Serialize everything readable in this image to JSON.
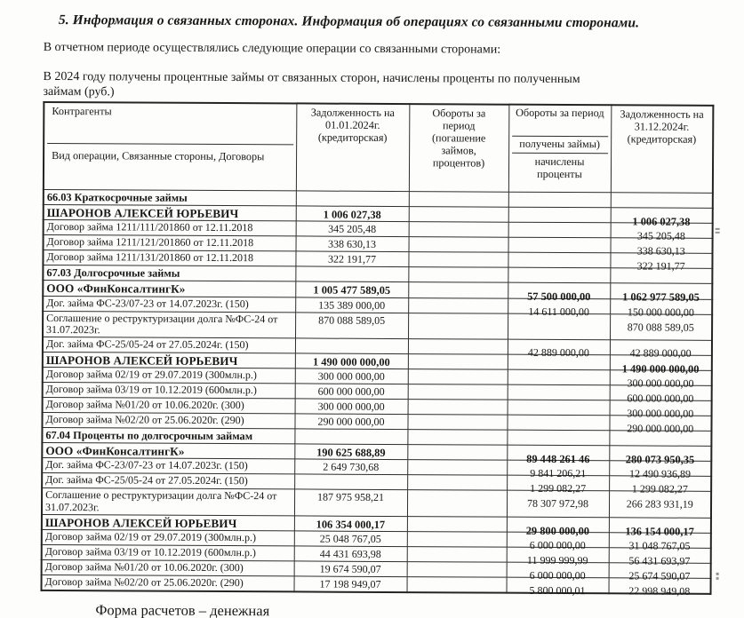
{
  "doc": {
    "title": "5. Информация о связанных сторонах. Информация об операциях со связанными сторонами.",
    "intro": "В отчетном периоде осуществлялись следующие операции со связанными сторонами:",
    "caption_line1": "В 2024 году получены процентные займы от связанных сторон, начислены проценты по полученным",
    "caption_line2": "займам (руб.)",
    "footer": "Форма расчетов – денежная"
  },
  "table": {
    "header": {
      "contractors": "Контрагенты",
      "operation_type": "Вид операции, Связанные стороны, Договоры",
      "debt_start": "Задолженность на 01.01.2024г. (кредиторская)",
      "turnover_repayment": "Обороты за период (погашение займов, процентов)",
      "turnover_period": "Обороты за период",
      "loans_received": "получены займы)",
      "interest_accrued": "начислены проценты",
      "debt_end": "Задолженность на 31.12.2024г. (кредиторская)"
    },
    "rows": [
      {
        "style": "section",
        "label": "66.03 Краткосрочные займы",
        "c2": "",
        "c3": "",
        "c4": "",
        "c5": ""
      },
      {
        "style": "group",
        "label": "ШАРОНОВ АЛЕКСЕЙ ЮРЬЕВИЧ",
        "c2": "1 006 027,38",
        "c3": "",
        "c4": "",
        "c5": "1 006 027,38"
      },
      {
        "style": "item",
        "label": "Договор займа 1211/111/201860 от 12.11.2018",
        "c2": "345 205,48",
        "c3": "",
        "c4": "",
        "c5": "345 205,48"
      },
      {
        "style": "item",
        "label": "Договор займа 1211/121/201860 от 12.11.2018",
        "c2": "338 630,13",
        "c3": "",
        "c4": "",
        "c5": "338 630,13"
      },
      {
        "style": "item",
        "label": "Договор займа 1211/131/201860 от 12.11.2018",
        "c2": "322 191,77",
        "c3": "",
        "c4": "",
        "c5": "322 191,77"
      },
      {
        "style": "section",
        "label": "67.03 Долгосрочные займы",
        "c2": "",
        "c3": "",
        "c4": "",
        "c5": ""
      },
      {
        "style": "group",
        "label": "ООО «ФинКонсалтингК»",
        "c2": "1 005 477 589,05",
        "c3": "",
        "c4": "57 500 000,00",
        "c5": "1 062 977 589,05"
      },
      {
        "style": "item",
        "label": "Дог. займа ФС-23/07-23 от 14.07.2023г. (150)",
        "c2": "135 389 000,00",
        "c3": "",
        "c4": "14 611 000,00",
        "c5": "150 000 000,00"
      },
      {
        "style": "item2",
        "label": "Соглашение о реструктуризации долга №ФС-24 от 31.07.2023г.",
        "c2": "870 088 589,05",
        "c3": "",
        "c4": "",
        "c5": "870 088 589,05"
      },
      {
        "style": "item",
        "label": "Дог. займа ФС-25/05-24 от 27.05.2024г. (150)",
        "c2": "",
        "c3": "",
        "c4": "42 889 000,00",
        "c5": "42 889 000,00"
      },
      {
        "style": "group",
        "label": "ШАРОНОВ АЛЕКСЕЙ ЮРЬЕВИЧ",
        "c2": "1 490 000 000,00",
        "c3": "",
        "c4": "",
        "c5": "1 490 000 000,00"
      },
      {
        "style": "item",
        "label": "Договор займа 02/19 от 29.07.2019 (300млн.р.)",
        "c2": "300 000 000,00",
        "c3": "",
        "c4": "",
        "c5": "300 000 000,00"
      },
      {
        "style": "item",
        "label": "Договор займа 03/19 от 10.12.2019 (600млн.р.)",
        "c2": "600 000 000,00",
        "c3": "",
        "c4": "",
        "c5": "600 000 000,00"
      },
      {
        "style": "item",
        "label": "Договор займа №01/20 от 10.06.2020г. (300)",
        "c2": "300 000 000,00",
        "c3": "",
        "c4": "",
        "c5": "300 000 000,00"
      },
      {
        "style": "item",
        "label": "Договор займа №02/20 от 25.06.2020г. (290)",
        "c2": "290 000 000,00",
        "c3": "",
        "c4": "",
        "c5": "290 000 000,00"
      },
      {
        "style": "section",
        "label": "67.04 Проценты по долгосрочным займам",
        "c2": "",
        "c3": "",
        "c4": "",
        "c5": ""
      },
      {
        "style": "group",
        "label": "ООО «ФинКонсалтингК»",
        "c2": "190 625 688,89",
        "c3": "",
        "c4": "89 448 261 46",
        "c5": "280 073 950,35"
      },
      {
        "style": "item",
        "label": "Дог. займа ФС-23/07-23 от 14.07.2023г. (150)",
        "c2": "2 649 730,68",
        "c3": "",
        "c4": "9 841 206,21",
        "c5": "12 490 936,89"
      },
      {
        "style": "item",
        "label": "Дог. займа ФС-25/05-24 от 27.05.2024г. (150)",
        "c2": "",
        "c3": "",
        "c4": "1 299 082,27",
        "c5": "1 299 082,27"
      },
      {
        "style": "item2",
        "label": "Соглашение о реструктуризации долга №ФС-24 от 31.07.2023г.",
        "c2": "187 975 958,21",
        "c3": "",
        "c4": "78 307 972,98",
        "c5": "266 283 931,19"
      },
      {
        "style": "group",
        "label": "ШАРОНОВ АЛЕКСЕЙ ЮРЬЕВИЧ",
        "c2": "106 354 000,17",
        "c3": "",
        "c4": "29 800 000,00",
        "c5": "136 154 000,17"
      },
      {
        "style": "item",
        "label": "Договор займа 02/19 от 29.07.2019 (300млн.р.)",
        "c2": "25 048 767,05",
        "c3": "",
        "c4": "6 000 000,00",
        "c5": "31 048 767,05"
      },
      {
        "style": "item",
        "label": "Договор займа 03/19 от 10.12.2019 (600млн.р.)",
        "c2": "44 431 693,98",
        "c3": "",
        "c4": "11 999 999,99",
        "c5": "56 431 693,97"
      },
      {
        "style": "item",
        "label": "Договор займа №01/20 от 10.06.2020г. (300)",
        "c2": "19 674 590,07",
        "c3": "",
        "c4": "6 000 000,00",
        "c5": "25 674 590,07"
      },
      {
        "style": "item",
        "label": "Договор займа №02/20 от 25.06.2020г. (290)",
        "c2": "17 198 949,07",
        "c3": "",
        "c4": "5 800 000,01",
        "c5": "22 998 949,08"
      }
    ]
  }
}
